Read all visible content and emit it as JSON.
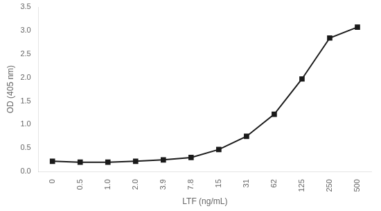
{
  "chart_data": {
    "type": "line",
    "xlabel": "LTF (ng/mL)",
    "ylabel": "OD (405 nm)",
    "categories": [
      "0",
      "0.5",
      "1.0",
      "2.0",
      "3.9",
      "7.8",
      "15",
      "31",
      "62",
      "125",
      "250",
      "500"
    ],
    "values": [
      0.22,
      0.2,
      0.2,
      0.22,
      0.25,
      0.3,
      0.47,
      0.75,
      1.22,
      1.97,
      2.84,
      3.07
    ],
    "color": "#1a1a1a",
    "marker": "square",
    "ylim": [
      0,
      3.5
    ],
    "yticks": [
      {
        "value": 0,
        "label": "0.0"
      },
      0.5,
      {
        "value": 1,
        "label": "1.0"
      },
      1.5,
      {
        "value": 2,
        "label": "2.0"
      },
      2.5,
      {
        "value": 3,
        "label": "3.0"
      },
      3.5
    ],
    "grid": false
  }
}
